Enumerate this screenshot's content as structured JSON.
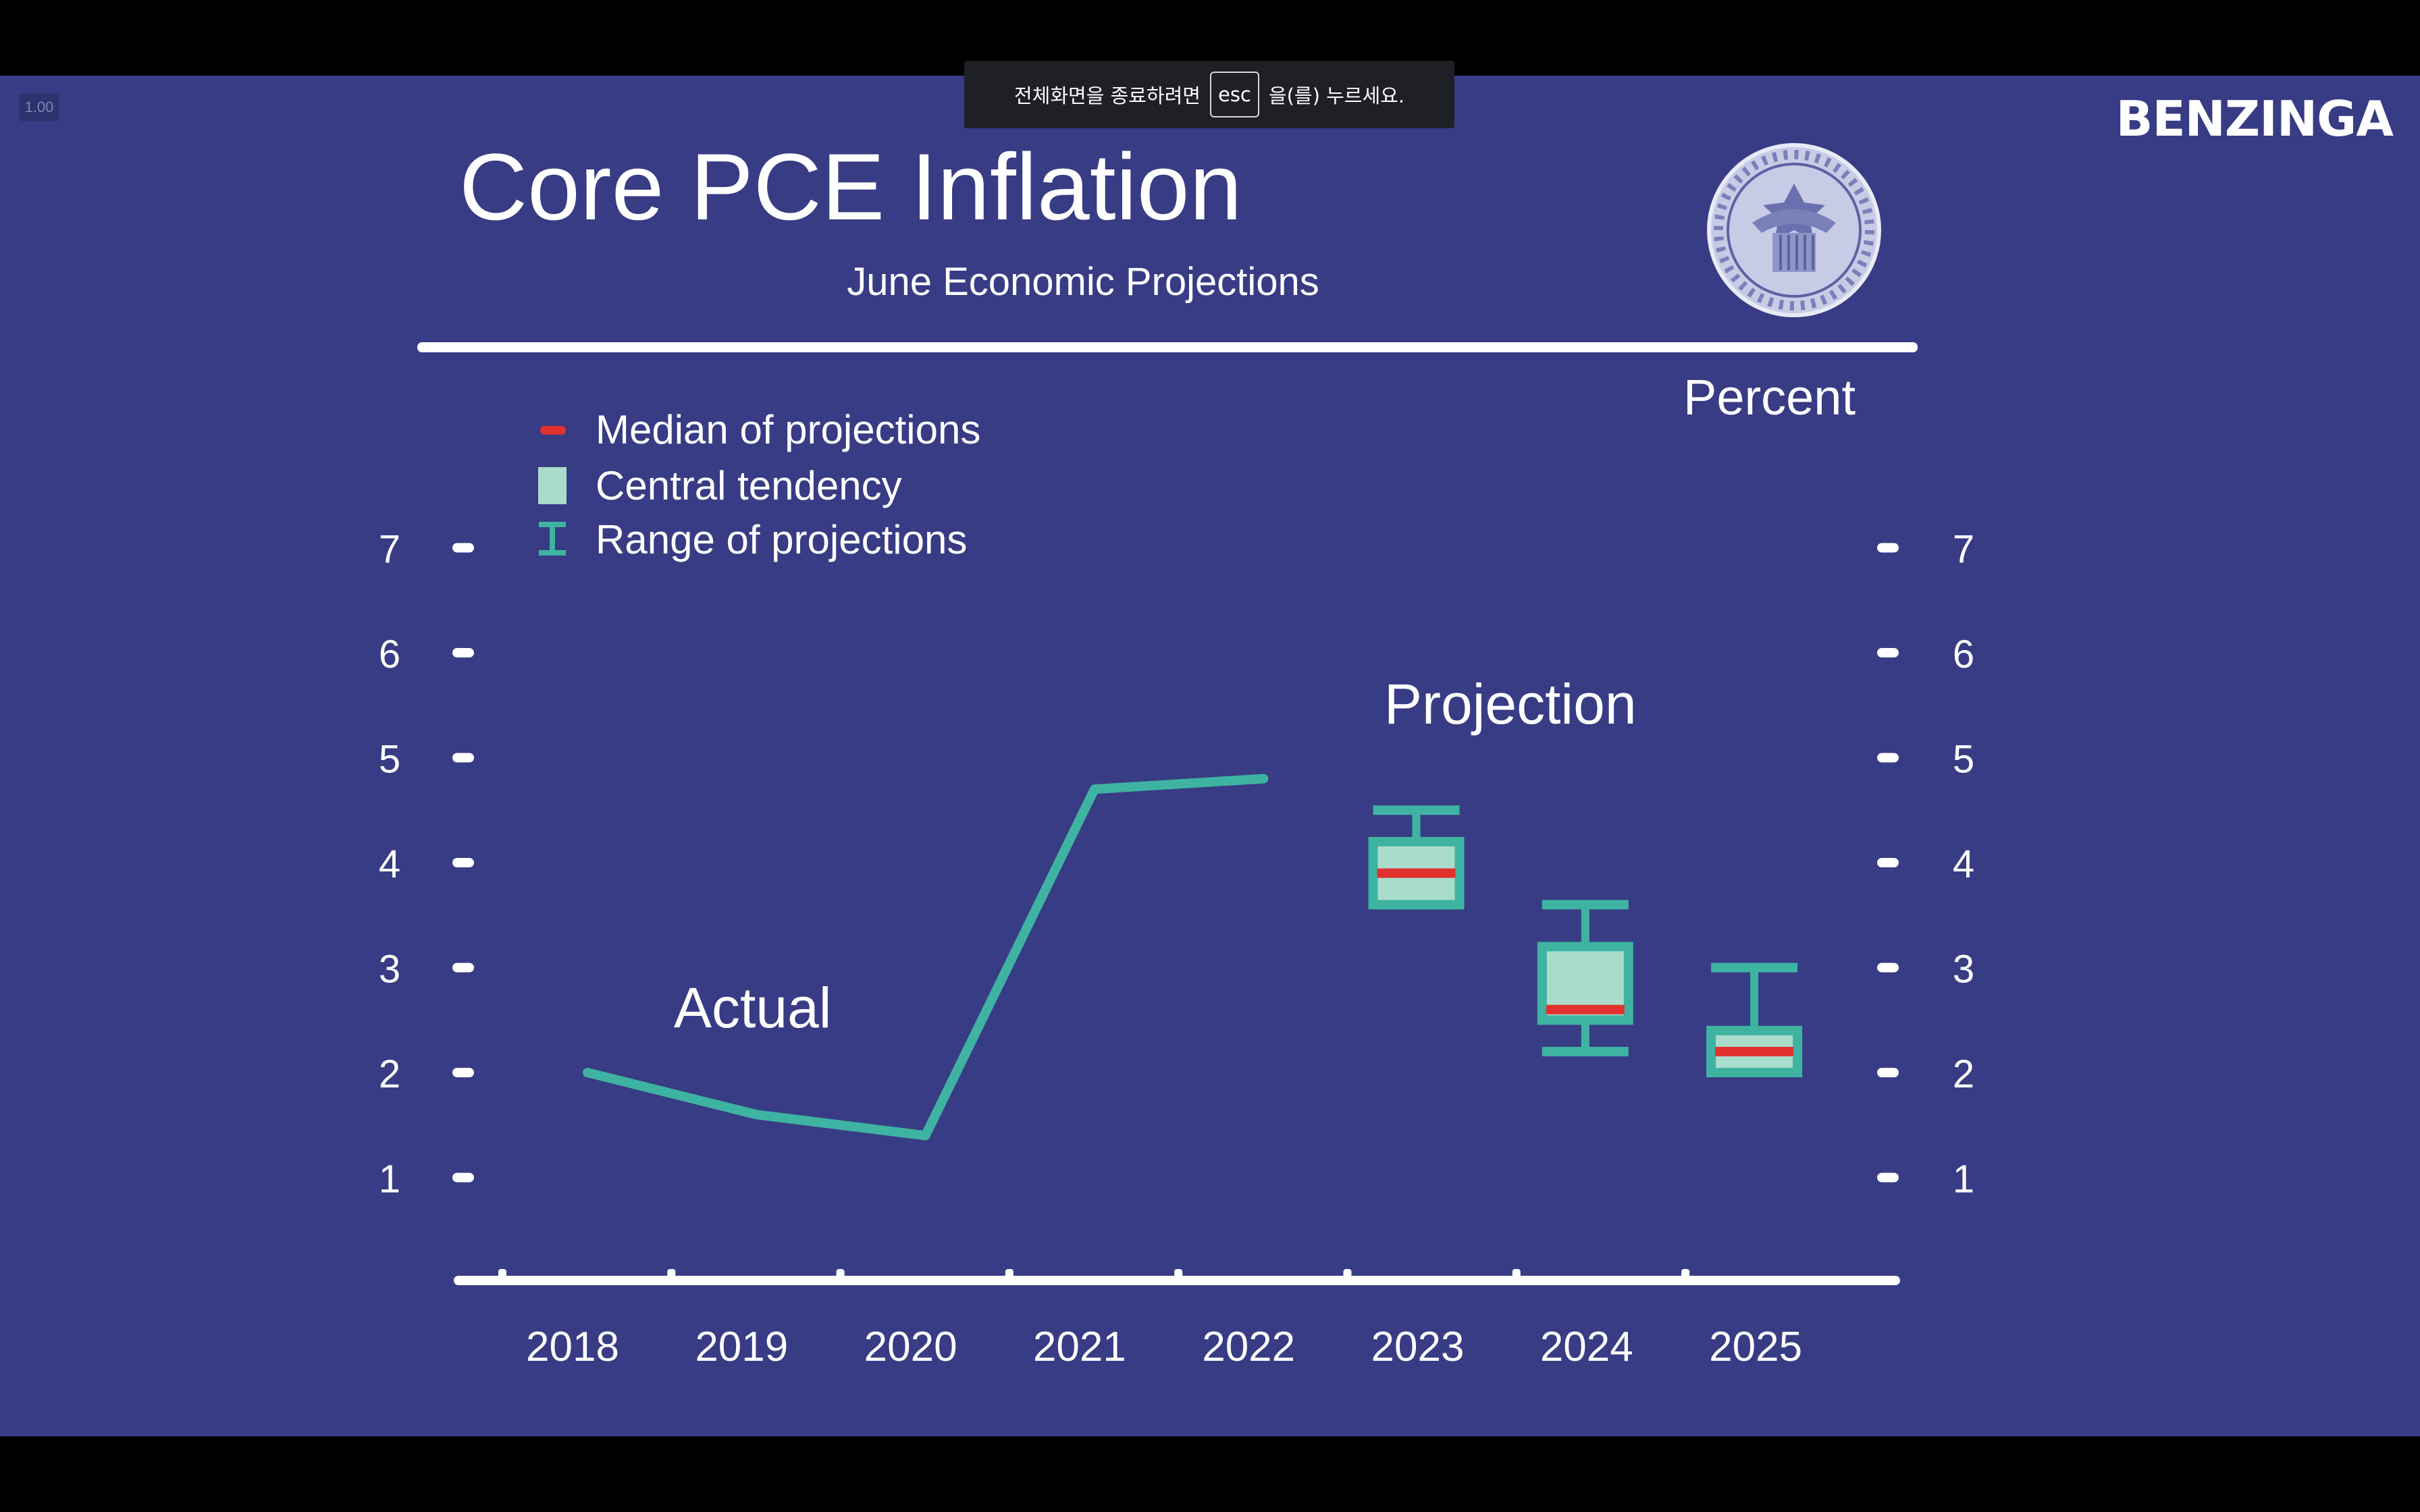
{
  "overlay": {
    "fullscreen_before": "전체화면을 종료하려면",
    "fullscreen_key": "esc",
    "fullscreen_after": "을(를) 누르세요.",
    "playback_speed": "1.00",
    "brand": "BENZINGA"
  },
  "colors": {
    "background": "#373c84",
    "line": "#3fb3a1",
    "box_fill": "#a9dccb",
    "median": "#e0312f",
    "text": "#ffffff"
  },
  "chart_data": {
    "type": "line",
    "title": "Core PCE Inflation",
    "subtitle": "June Economic Projections",
    "unit_label": "Percent",
    "categories": [
      "2018",
      "2019",
      "2020",
      "2021",
      "2022",
      "2023",
      "2024",
      "2025"
    ],
    "ylim": [
      0,
      7
    ],
    "yticks": [
      1,
      2,
      3,
      4,
      5,
      6,
      7
    ],
    "grid": false,
    "legend": {
      "position": "top-left",
      "entries": [
        "Median of projections",
        "Central tendency",
        "Range of projections"
      ]
    },
    "annotations": [
      "Actual",
      "Projection"
    ],
    "actual": {
      "name": "Actual",
      "x": [
        2018,
        2019,
        2020,
        2021,
        2022
      ],
      "values": [
        2.0,
        1.6,
        1.4,
        4.7,
        4.8
      ]
    },
    "projections": [
      {
        "year": "2023",
        "median": 3.9,
        "central_tendency": [
          3.6,
          4.2
        ],
        "range": [
          3.6,
          4.5
        ]
      },
      {
        "year": "2024",
        "median": 2.6,
        "central_tendency": [
          2.5,
          3.2
        ],
        "range": [
          2.2,
          3.6
        ]
      },
      {
        "year": "2025",
        "median": 2.2,
        "central_tendency": [
          2.0,
          2.4
        ],
        "range": [
          2.0,
          3.0
        ]
      }
    ]
  }
}
